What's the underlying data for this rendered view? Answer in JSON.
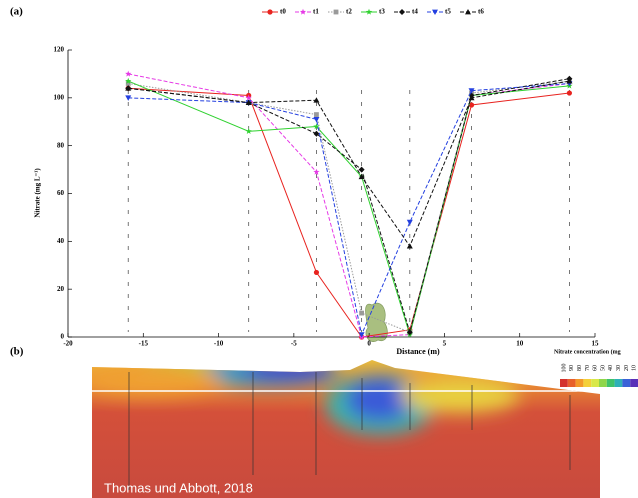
{
  "chart_data": {
    "type": "line",
    "x": [
      -16,
      -8,
      -3.5,
      -0.5,
      2.7,
      6.8,
      13.3
    ],
    "series": [
      {
        "name": "t0",
        "color": "#e8231f",
        "dash": "solid",
        "marker": "circle",
        "values": [
          104,
          101,
          27,
          0,
          3,
          97,
          102
        ]
      },
      {
        "name": "t1",
        "color": "#e63ae6",
        "dash": "dashed",
        "marker": "star",
        "values": [
          110,
          100,
          69,
          0,
          1,
          101,
          106
        ]
      },
      {
        "name": "t2",
        "color": "#9a9a9a",
        "dash": "dotted",
        "marker": "square",
        "values": [
          106,
          98,
          93,
          10,
          2,
          102,
          107
        ]
      },
      {
        "name": "t3",
        "color": "#2fd12f",
        "dash": "solid",
        "marker": "star",
        "values": [
          107,
          86,
          88,
          67,
          1,
          101,
          105
        ]
      },
      {
        "name": "t4",
        "color": "#111111",
        "dash": "dashed",
        "marker": "diamond",
        "values": [
          104,
          98,
          85,
          70,
          2,
          101,
          108
        ]
      },
      {
        "name": "t5",
        "color": "#2440e0",
        "dash": "dashed",
        "marker": "triangle-down",
        "values": [
          100,
          98,
          91,
          1,
          48,
          103,
          106
        ]
      },
      {
        "name": "t6",
        "color": "#111111",
        "dash": "dashed",
        "marker": "triangle-up",
        "values": [
          104,
          98,
          99,
          67,
          38,
          100,
          107
        ]
      }
    ],
    "xlim": [
      -20,
      15
    ],
    "ylim": [
      0,
      120
    ],
    "xticks": [
      -20,
      -15,
      -10,
      -5,
      0,
      5,
      10,
      15
    ],
    "yticks": [
      0,
      20,
      40,
      60,
      80,
      100,
      120
    ],
    "xlabel": "Distance (m)",
    "ylabel": "Nitrate (mg L⁻¹)"
  },
  "panel_labels": [
    "(a)",
    "(b)"
  ],
  "colorbar": {
    "title": "Nitrate concentration (mg",
    "ticks": [
      100,
      90,
      80,
      70,
      60,
      50,
      40,
      30,
      20,
      10
    ],
    "colors": [
      "#d4322c",
      "#e8612c",
      "#f39a2b",
      "#f4d03a",
      "#d9e84a",
      "#8fd64a",
      "#3fc26b",
      "#2fb0b8",
      "#3a62d8",
      "#5a2fb8"
    ]
  },
  "credit": "Thomas und Abbott, 2018"
}
